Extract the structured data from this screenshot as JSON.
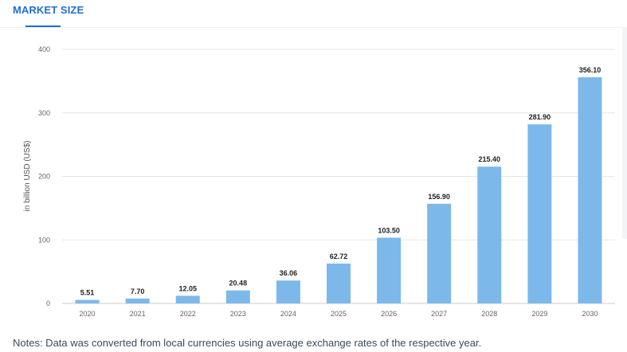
{
  "tab": {
    "label": "MARKET SIZE"
  },
  "notes": "Notes: Data was converted from local currencies using average exchange rates of the respective year.",
  "colors": {
    "bar": "#7cb9ea",
    "accent": "#1f6fd1",
    "grid": "#e6e6e6"
  },
  "chart_data": {
    "type": "bar",
    "categories": [
      "2020",
      "2021",
      "2022",
      "2023",
      "2024",
      "2025",
      "2026",
      "2027",
      "2028",
      "2029",
      "2030"
    ],
    "values": [
      5.51,
      7.7,
      12.05,
      20.48,
      36.06,
      62.72,
      103.5,
      156.9,
      215.4,
      281.9,
      356.1
    ],
    "value_labels": [
      "5.51",
      "7.70",
      "12.05",
      "20.48",
      "36.06",
      "62.72",
      "103.50",
      "156.90",
      "215.40",
      "281.90",
      "356.10"
    ],
    "ylabel": "in billion USD (US$)",
    "yticks": [
      "0",
      "100",
      "200",
      "300",
      "400"
    ],
    "ylim": [
      0,
      400
    ],
    "grid": true
  }
}
